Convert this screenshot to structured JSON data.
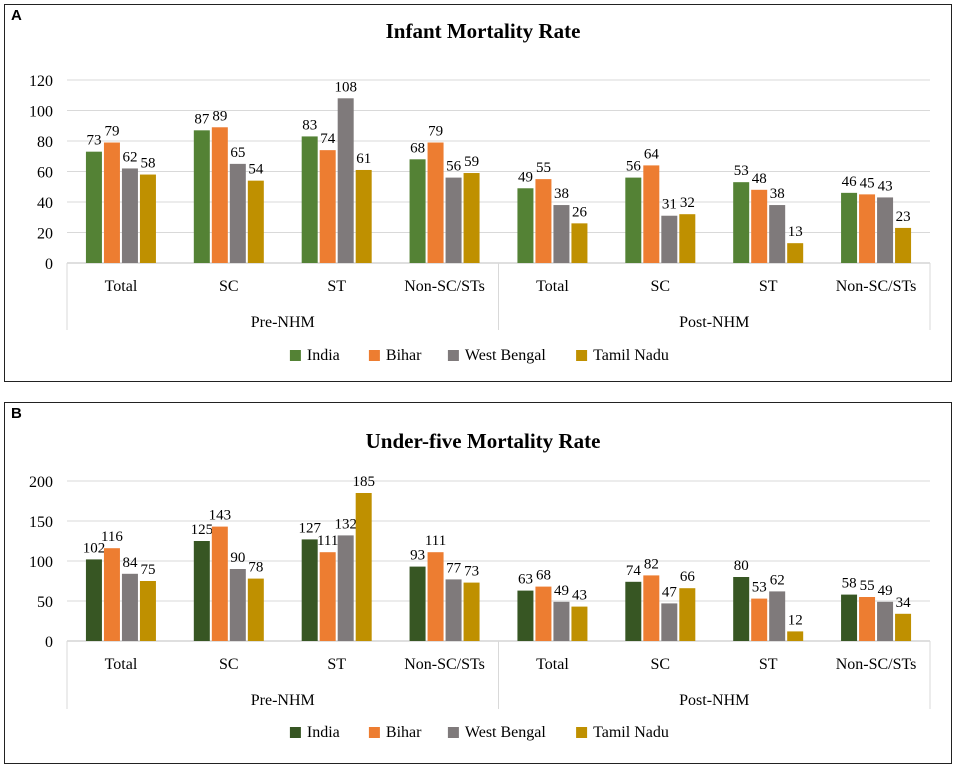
{
  "figure": {
    "panel_a_letter": "A",
    "panel_b_letter": "B"
  },
  "chart_data": [
    {
      "type": "bar",
      "panel": "A",
      "title": "Infant Mortality Rate",
      "groups": [
        "Pre-NHM",
        "Post-NHM"
      ],
      "categories": [
        "Total",
        "SC",
        "ST",
        "Non-SC/STs",
        "Total",
        "SC",
        "ST",
        "Non-SC/STs"
      ],
      "ylim": [
        0,
        120
      ],
      "yticks": [
        0,
        20,
        40,
        60,
        80,
        100,
        120
      ],
      "grid": true,
      "legend_position": "bottom",
      "series": [
        {
          "name": "India",
          "color": "#548235",
          "values": [
            73,
            87,
            83,
            68,
            49,
            56,
            53,
            46
          ]
        },
        {
          "name": "Bihar",
          "color": "#ED7D31",
          "values": [
            79,
            89,
            74,
            79,
            55,
            64,
            48,
            45
          ]
        },
        {
          "name": "West Bengal",
          "color": "#7F7A7B",
          "values": [
            62,
            65,
            108,
            56,
            38,
            31,
            38,
            43
          ]
        },
        {
          "name": "Tamil Nadu",
          "color": "#BF9000",
          "values": [
            58,
            54,
            61,
            59,
            26,
            32,
            13,
            23
          ]
        }
      ]
    },
    {
      "type": "bar",
      "panel": "B",
      "title": "Under-five Mortality Rate",
      "groups": [
        "Pre-NHM",
        "Post-NHM"
      ],
      "categories": [
        "Total",
        "SC",
        "ST",
        "Non-SC/STs",
        "Total",
        "SC",
        "ST",
        "Non-SC/STs"
      ],
      "ylim": [
        0,
        200
      ],
      "yticks": [
        0,
        50,
        100,
        150,
        200
      ],
      "grid": true,
      "legend_position": "bottom",
      "series": [
        {
          "name": "India",
          "color": "#375623",
          "values": [
            102,
            125,
            127,
            93,
            63,
            74,
            80,
            58
          ]
        },
        {
          "name": "Bihar",
          "color": "#ED7D31",
          "values": [
            116,
            143,
            111,
            111,
            68,
            82,
            53,
            55
          ]
        },
        {
          "name": "West Bengal",
          "color": "#7F7A7B",
          "values": [
            84,
            90,
            132,
            77,
            49,
            47,
            62,
            49
          ]
        },
        {
          "name": "Tamil Nadu",
          "color": "#BF9000",
          "values": [
            75,
            78,
            185,
            73,
            43,
            66,
            12,
            34
          ]
        }
      ]
    }
  ]
}
